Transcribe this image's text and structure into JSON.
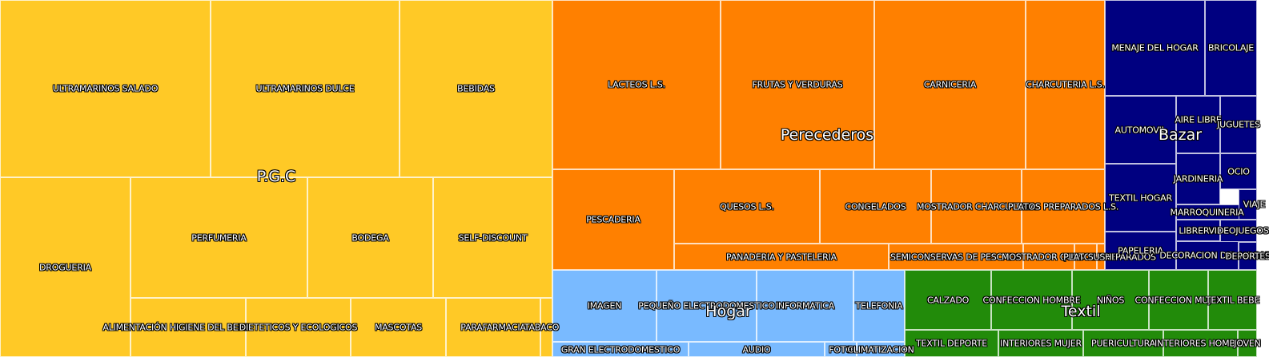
{
  "chart_data": {
    "type": "treemap",
    "groups": [
      {
        "name": "P.G.C",
        "color": "#FFC926",
        "items": [
          "ULTRAMARINOS SALADO",
          "ULTRAMARINOS DULCE",
          "BEBIDAS",
          "DROGUERIA",
          "PERFUMERIA",
          "BODEGA",
          "SELF-DISCOUNT",
          "ALIMENTACIÓN HIGIENE DEL BEBE",
          "DIETETICOS Y ECOLOGICOS",
          "MASCOTAS",
          "PARAFARMACIA",
          "TABACO"
        ]
      },
      {
        "name": "Perecederos",
        "color": "#FF8000",
        "items": [
          "LACTEOS L.S.",
          "FRUTAS Y VERDURAS",
          "CARNICERIA",
          "CHARCUTERIA L.S.",
          "PESCADERIA",
          "QUESOS L.S.",
          "CONGELADOS",
          "MOSTRADOR CHARCUTERIA",
          "PLATOS PREPARADOS L.S.",
          "PANADERIA Y PASTELERIA",
          "SEMICONSERVAS DE PESCADO",
          "MOSTRADOR QUESOS",
          "PLATOS PREPARADOS",
          "SUSHI"
        ]
      },
      {
        "name": "Bazar",
        "color": "#000080",
        "items": [
          "MENAJE DEL HOGAR",
          "BRICOLAJE",
          "AUTOMOVIL",
          "AIRE LIBRE",
          "JUGUETES",
          "TEXTIL HOGAR",
          "JARDINERIA",
          "OCIO",
          "MARROQUINERIA",
          "VIAJE",
          "LIBRERIA",
          "VIDEOJUEGOS",
          "PAPELERIA",
          "DECORACION DEL HOGAR",
          "DEPORTES"
        ]
      },
      {
        "name": "Hogar",
        "color": "#79BAFF",
        "items": [
          "IMAGEN",
          "PEQUEÑO ELECTRODOMESTICO",
          "INFORMATICA",
          "TELEFONIA",
          "GRAN ELECTRODOMESTICO",
          "AUDIO",
          "FOTO",
          "CLIMATIZACION"
        ]
      },
      {
        "name": "Textil",
        "color": "#228B0A",
        "items": [
          "CALZADO",
          "CONFECCION HOMBRE",
          "NIÑOS",
          "CONFECCION MUJER",
          "TEXTIL BEBE",
          "TEXTIL DEPORTE",
          "INTERIORES MUJER",
          "PUERICULTURA",
          "INTERIORES HOMBRE",
          "JOVEN"
        ]
      }
    ]
  }
}
